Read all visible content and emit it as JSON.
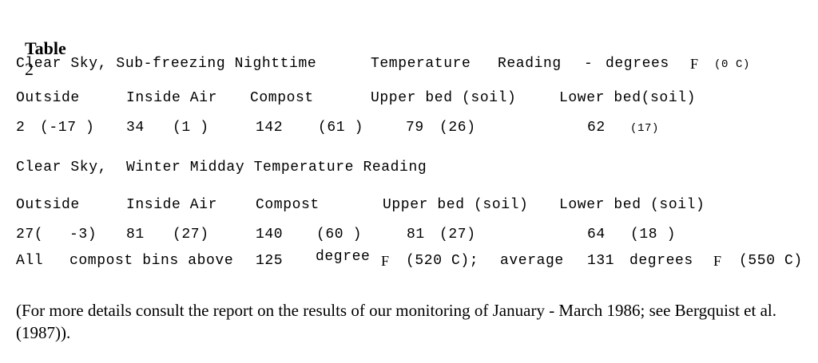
{
  "table_title": {
    "label": "Table",
    "number": "2"
  },
  "night": {
    "heading": {
      "part1": "Clear Sky, Sub-freezing Nighttime",
      "part2": "Temperature",
      "part3": "Reading",
      "dash": "-",
      "part4": "degrees",
      "unit_f": "F",
      "unit_c": "(0 C)"
    },
    "columns": {
      "outside": "Outside",
      "inside_air": "Inside Air",
      "compost": "Compost",
      "upper_bed": "Upper bed (soil)",
      "lower_bed": "Lower bed(soil)"
    },
    "values": {
      "outside_f": "2",
      "outside_c": "(-17 )",
      "inside_f": "34",
      "inside_c": "(1 )",
      "compost_f": "142",
      "compost_c": "(61 )",
      "upper_f": "79",
      "upper_c": "(26)",
      "lower_f": "62",
      "lower_c": "(17)"
    }
  },
  "midday": {
    "heading": {
      "part1": "Clear Sky,",
      "part2": "Winter Midday Temperature Reading"
    },
    "columns": {
      "outside": "Outside",
      "inside_air": "Inside Air",
      "compost": "Compost",
      "upper_bed": "Upper bed (soil)",
      "lower_bed": "Lower bed (soil)"
    },
    "values": {
      "outside_f": "27(",
      "outside_c": "-3)",
      "inside_f": "81",
      "inside_c": "(27)",
      "compost_f": "140",
      "compost_c": "(60 )",
      "upper_f": "81",
      "upper_c": "(27)",
      "lower_f": "64",
      "lower_c": "(18 )"
    },
    "summary": {
      "all": "All",
      "bins": "compost bins above",
      "value": "125",
      "degree": "degree",
      "unit_f": "F",
      "value_c": "(520 C);",
      "average": "average",
      "avg_value": "131",
      "degrees": "degrees",
      "avg_unit_f": "F",
      "avg_c": "(550 C)"
    }
  },
  "footnote": "(For more details consult the report on the results of our monitoring of January - March 1986; see Bergquist et al. (1987))."
}
